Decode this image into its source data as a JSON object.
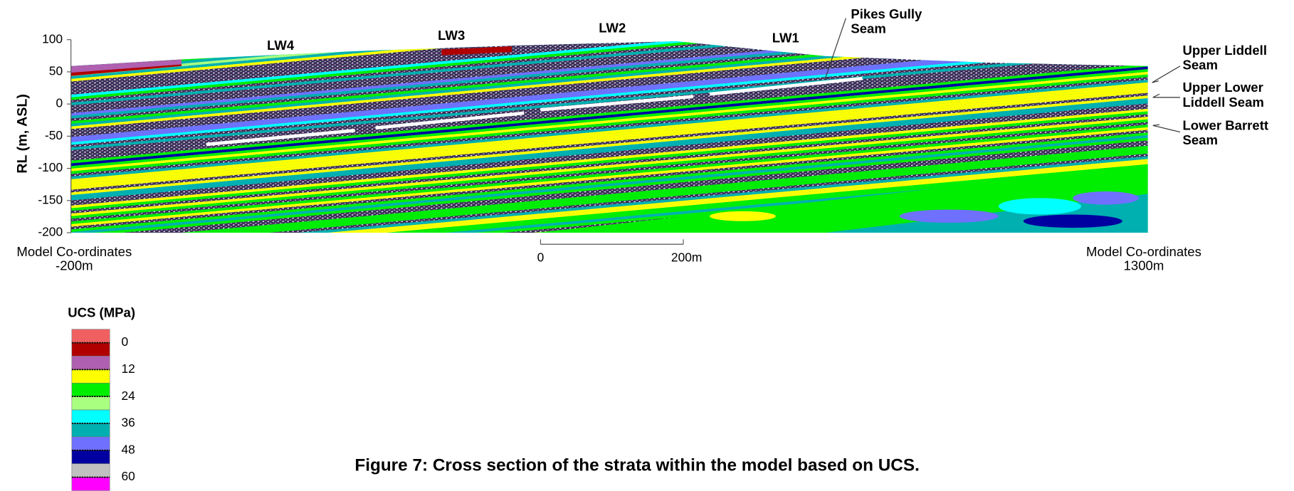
{
  "chart_data": {
    "type": "cross-section",
    "title": "Figure 7: Cross section of the strata within the model based on UCS.",
    "y_label": "RL (m, ASL)",
    "ylim": [
      -200,
      100
    ],
    "yticks": [
      100,
      50,
      0,
      -50,
      -100,
      -150,
      -200
    ],
    "panels": [
      "LW4",
      "LW3",
      "LW2",
      "LW1"
    ],
    "seams": [
      [
        "Pikes Gully",
        "Seam"
      ],
      [
        "Upper Liddell",
        "Seam"
      ],
      [
        "Upper Lower",
        "Liddell Seam"
      ],
      [
        "Lower Barrett",
        "Seam"
      ]
    ],
    "extent_left": [
      "Model Co-ordinates",
      "-200m"
    ],
    "extent_right": [
      "Model Co-ordinates",
      "1300m"
    ],
    "scale_bar": [
      "0",
      "200m"
    ],
    "legend": {
      "title": "UCS (MPa)",
      "ticks": [
        0,
        12,
        24,
        36,
        48,
        60
      ],
      "colors": [
        "#f06060",
        "#b00000",
        "#b060b0",
        "#ffff00",
        "#00ee00",
        "#a8ff80",
        "#00ffff",
        "#00b0b0",
        "#7070ff",
        "#0000a0",
        "#c0c0c0",
        "#ff00ff"
      ]
    }
  }
}
